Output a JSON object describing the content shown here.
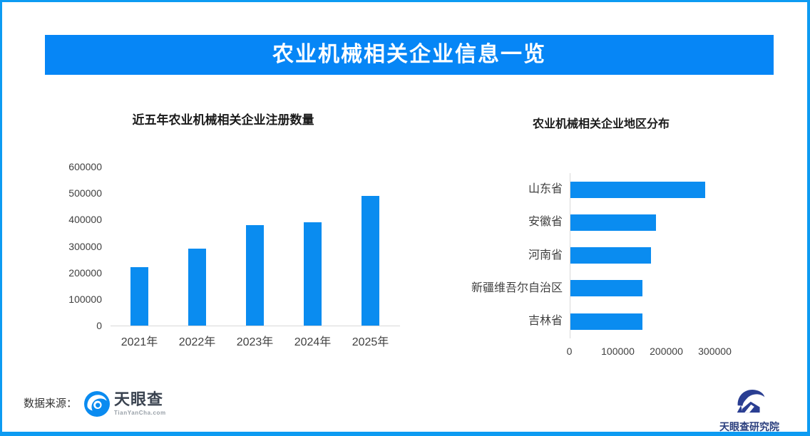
{
  "header": {
    "title": "农业机械相关企业信息一览"
  },
  "chart_data": [
    {
      "type": "bar",
      "title": "近五年农业机械相关企业注册数量",
      "categories": [
        "2021年",
        "2022年",
        "2023年",
        "2024年",
        "2025年"
      ],
      "values": [
        220000,
        290000,
        380000,
        390000,
        490000
      ],
      "ylim": [
        0,
        600000
      ],
      "ytick_step": 100000,
      "yticks": [
        "0",
        "100000",
        "200000",
        "300000",
        "400000",
        "500000",
        "600000"
      ],
      "xlabel": "",
      "ylabel": "",
      "grid": false,
      "legend": "none",
      "bar_color": "#0A8CF0"
    },
    {
      "type": "bar-horizontal",
      "title": "农业机械相关企业地区分布",
      "categories": [
        "山东省",
        "安徽省",
        "河南省",
        "新疆维吾尔自治区",
        "吉林省"
      ],
      "values": [
        278000,
        177000,
        166000,
        149000,
        149000
      ],
      "xlim": [
        0,
        300000
      ],
      "xticks": [
        "0",
        "100000",
        "200000",
        "300000"
      ],
      "xlabel": "",
      "ylabel": "",
      "grid": false,
      "legend": "none",
      "bar_color": "#0A8CF0"
    }
  ],
  "footer": {
    "source_label": "数据来源：",
    "tianyancha_logo": {
      "name": "天眼查",
      "domain": "TianYanCha.com"
    },
    "research_logo": {
      "name": "天眼查研究院"
    }
  },
  "colors": {
    "accent_blue": "#0A8CF0",
    "banner_blue": "#0686F6",
    "border_blue": "#0D9BF2",
    "axis_gray": "#D9D9D9",
    "axis_text": "#404040",
    "tyc_icon_blue": "#0A8BF0",
    "research_navy": "#2A3E92"
  }
}
